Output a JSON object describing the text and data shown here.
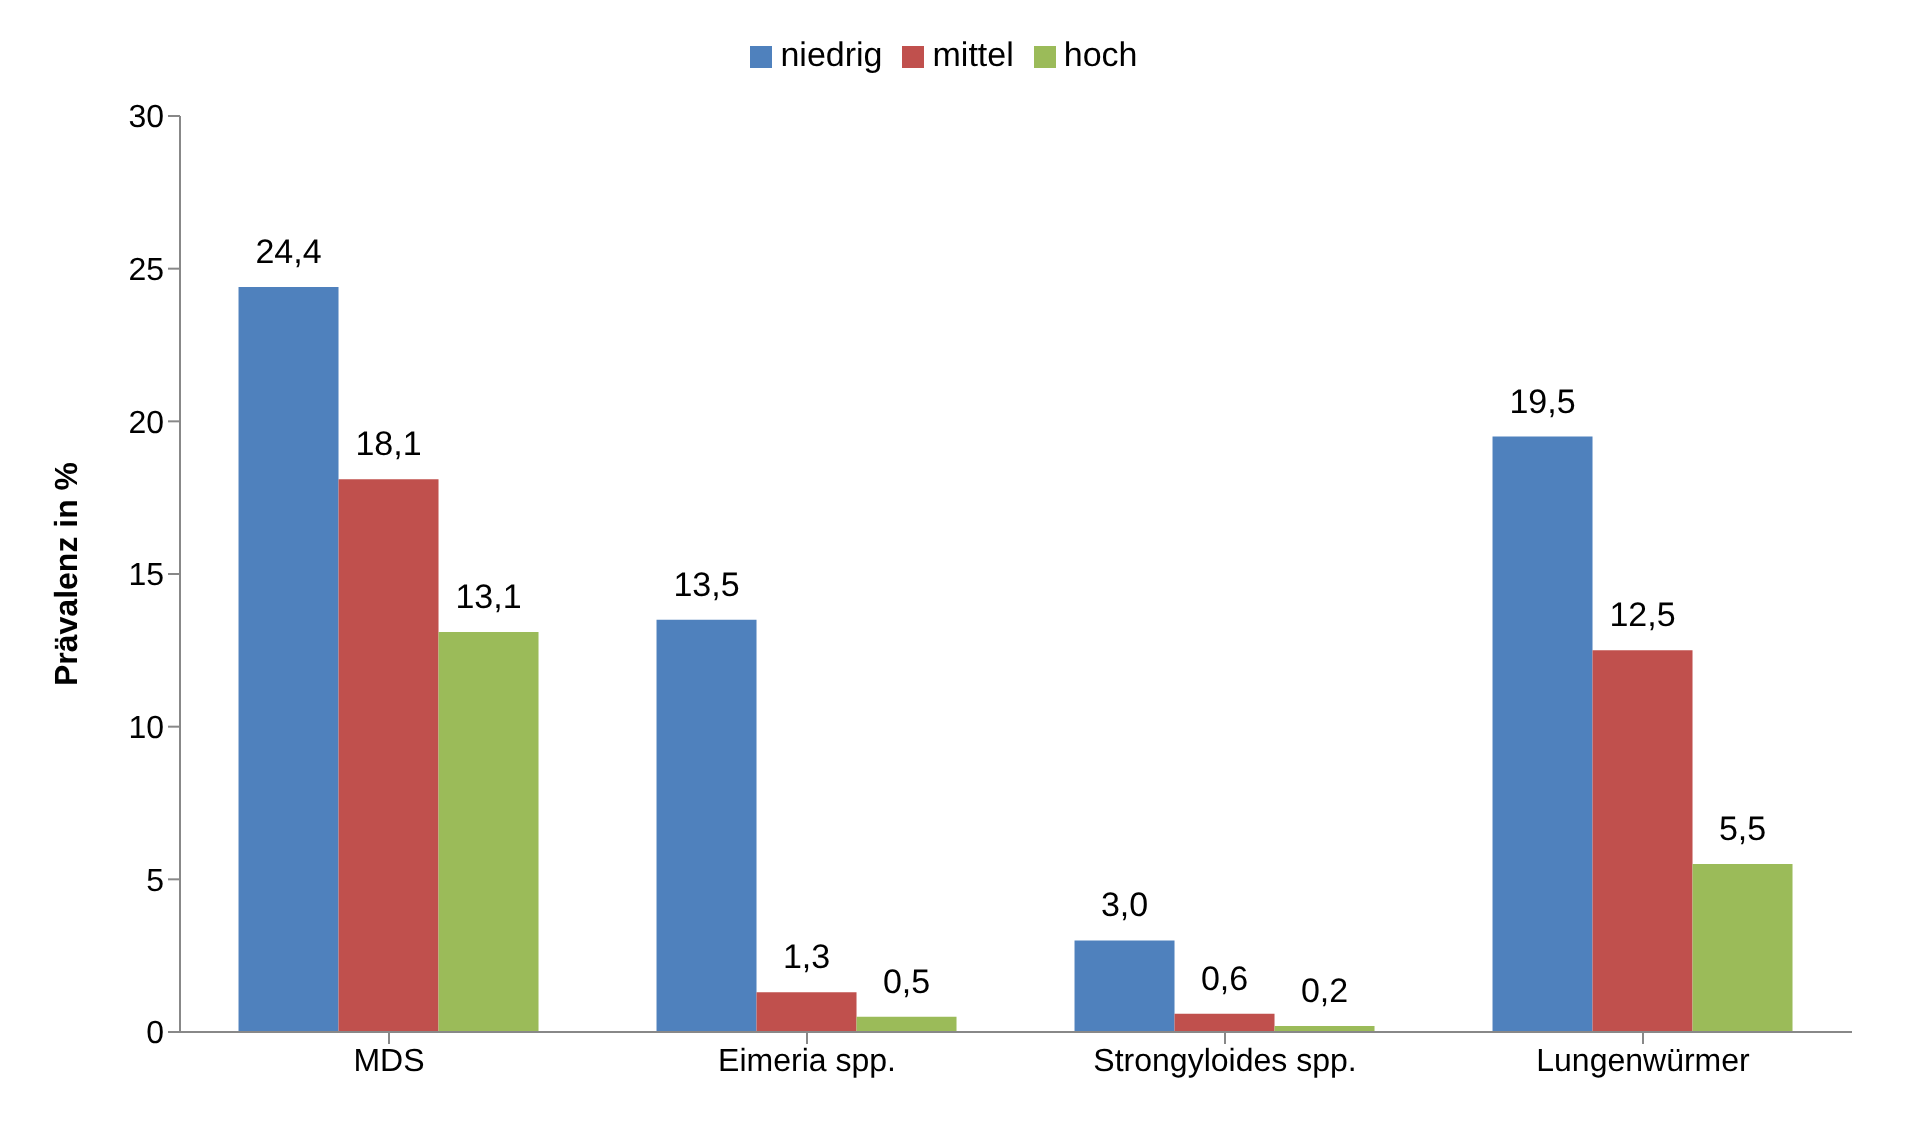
{
  "chart_data": {
    "type": "bar",
    "ylabel": "Prävalenz in %",
    "categories": [
      "MDS",
      "Eimeria spp.",
      "Strongyloides spp.",
      "Lungenwürmer"
    ],
    "series": [
      {
        "name": "niedrig",
        "color": "#4f81bd",
        "values": [
          24.4,
          13.5,
          3.0,
          19.5
        ],
        "value_labels": [
          "24,4",
          "13,5",
          "3,0",
          "19,5"
        ]
      },
      {
        "name": "mittel",
        "color": "#c0504d",
        "values": [
          18.1,
          1.3,
          0.6,
          12.5
        ],
        "value_labels": [
          "18,1",
          "1,3",
          "0,6",
          "12,5"
        ]
      },
      {
        "name": "hoch",
        "color": "#9bbb59",
        "values": [
          13.1,
          0.5,
          0.2,
          5.5
        ],
        "value_labels": [
          "13,1",
          "0,5",
          "0,2",
          "5,5"
        ]
      }
    ],
    "ylim": [
      0,
      30
    ],
    "yticks": [
      0,
      5,
      10,
      15,
      20,
      25,
      30
    ],
    "grid": false,
    "legend": "top"
  }
}
